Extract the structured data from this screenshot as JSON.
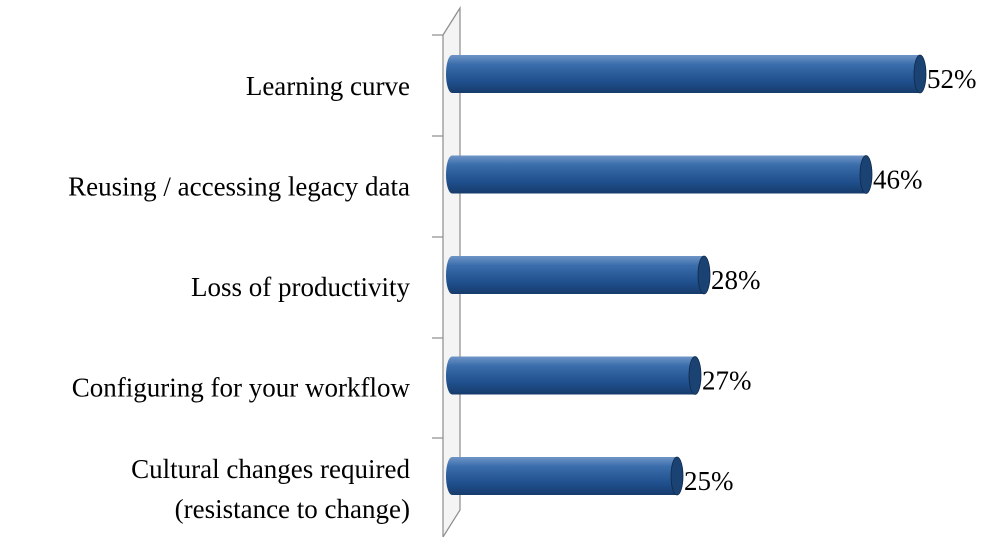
{
  "chart_data": {
    "type": "bar",
    "orientation": "horizontal",
    "categories": [
      "Learning curve",
      "Reusing / accessing legacy data",
      "Loss of productivity",
      "Configuring for your workflow",
      "Cultural changes required\n(resistance to change)"
    ],
    "values": [
      52,
      46,
      28,
      27,
      25
    ],
    "value_labels": [
      "52%",
      "46%",
      "28%",
      "27%",
      "25%"
    ],
    "color": "#2a5d9a",
    "xlim": [
      0,
      52
    ]
  }
}
